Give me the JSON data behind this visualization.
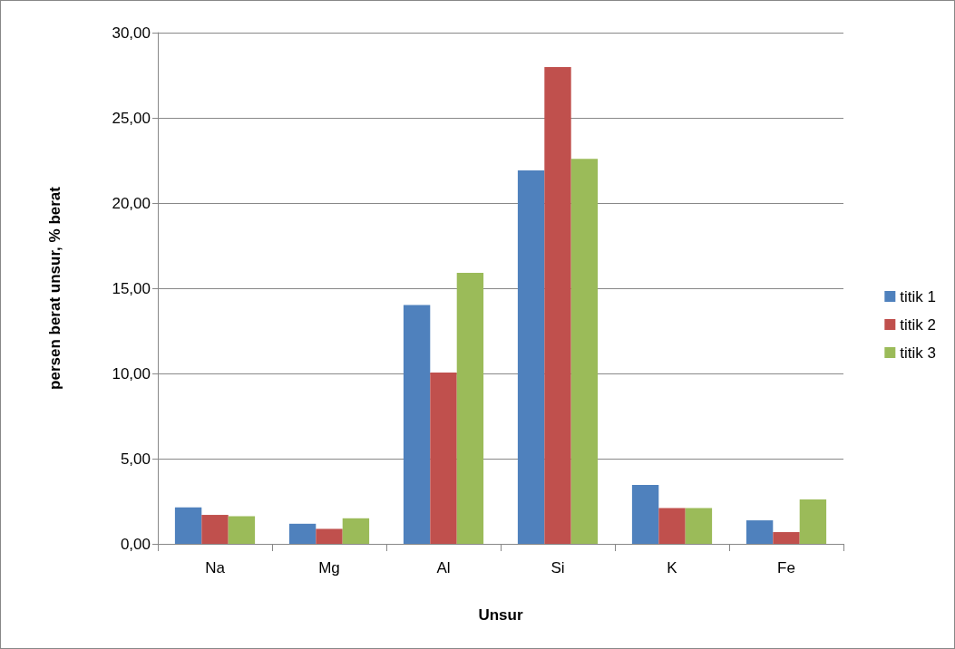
{
  "chart_data": {
    "type": "bar",
    "xlabel": "Unsur",
    "ylabel": "persen berat unsur, % berat",
    "categories": [
      "Na",
      "Mg",
      "Al",
      "Si",
      "K",
      "Fe"
    ],
    "series": [
      {
        "name": "titik 1",
        "color": "#4f81bd",
        "values": [
          2.14,
          1.18,
          14.02,
          21.92,
          3.46,
          1.38
        ]
      },
      {
        "name": "titik 2",
        "color": "#c0504d",
        "values": [
          1.7,
          0.88,
          10.05,
          27.98,
          2.1,
          0.69
        ]
      },
      {
        "name": "titik 3",
        "color": "#9bbb59",
        "values": [
          1.62,
          1.5,
          15.91,
          22.59,
          2.1,
          2.61
        ]
      }
    ],
    "ylim": [
      0,
      30
    ],
    "yticks": [
      {
        "value": 0,
        "label": "0,00"
      },
      {
        "value": 5,
        "label": "5,00"
      },
      {
        "value": 10,
        "label": "10,00"
      },
      {
        "value": 15,
        "label": "15,00"
      },
      {
        "value": 20,
        "label": "20,00"
      },
      {
        "value": 25,
        "label": "25,00"
      },
      {
        "value": 30,
        "label": "30,00"
      }
    ],
    "grid": "y",
    "legend": "right"
  }
}
